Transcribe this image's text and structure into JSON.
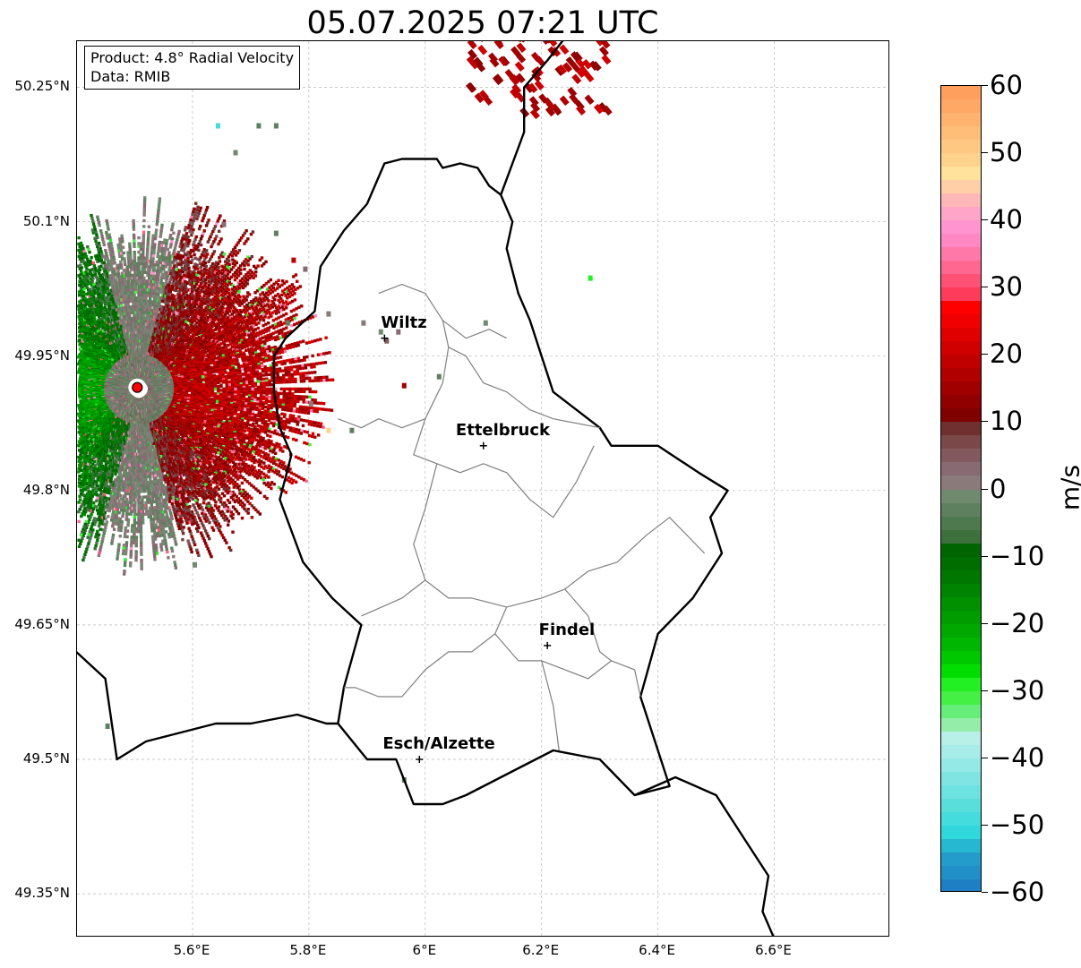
{
  "title": "05.07.2025 07:21 UTC",
  "info_box": {
    "line1": "Product: 4.8° Radial Velocity",
    "line2": "Data: RMIB"
  },
  "axes": {
    "lon_range": [
      5.4,
      6.8
    ],
    "lat_range": [
      49.3,
      50.3
    ],
    "lon_ticks": [
      {
        "value": 5.6,
        "label": "5.6°E"
      },
      {
        "value": 5.8,
        "label": "5.8°E"
      },
      {
        "value": 6.0,
        "label": "6°E"
      },
      {
        "value": 6.2,
        "label": "6.2°E"
      },
      {
        "value": 6.4,
        "label": "6.4°E"
      },
      {
        "value": 6.6,
        "label": "6.6°E"
      }
    ],
    "lat_ticks": [
      {
        "value": 50.25,
        "label": "50.25°N"
      },
      {
        "value": 50.1,
        "label": "50.1°N"
      },
      {
        "value": 49.95,
        "label": "49.95°N"
      },
      {
        "value": 49.8,
        "label": "49.8°N"
      },
      {
        "value": 49.65,
        "label": "49.65°N"
      },
      {
        "value": 49.5,
        "label": "49.5°N"
      },
      {
        "value": 49.35,
        "label": "49.35°N"
      }
    ],
    "grid": true
  },
  "cities": [
    {
      "name": "Wiltz",
      "lon": 5.93,
      "lat": 49.97
    },
    {
      "name": "Ettelbruck",
      "lon": 6.1,
      "lat": 49.85
    },
    {
      "name": "Findel",
      "lon": 6.21,
      "lat": 49.627
    },
    {
      "name": "Esch/Alzette",
      "lon": 5.99,
      "lat": 49.5
    }
  ],
  "radar_site": {
    "lon": 5.505,
    "lat": 49.915
  },
  "colorbar": {
    "unit": "m/s",
    "min": -60,
    "max": 60,
    "ticks": [
      {
        "value": 60,
        "label": "60"
      },
      {
        "value": 50,
        "label": "50"
      },
      {
        "value": 40,
        "label": "40"
      },
      {
        "value": 30,
        "label": "30"
      },
      {
        "value": 20,
        "label": "20"
      },
      {
        "value": 10,
        "label": "10"
      },
      {
        "value": 0,
        "label": "0"
      },
      {
        "value": -10,
        "label": "−10"
      },
      {
        "value": -20,
        "label": "−20"
      },
      {
        "value": -30,
        "label": "−30"
      },
      {
        "value": -40,
        "label": "−40"
      },
      {
        "value": -50,
        "label": "−50"
      },
      {
        "value": -60,
        "label": "−60"
      }
    ],
    "stops": [
      {
        "from": 58,
        "to": 60,
        "color": "#ff9f5e"
      },
      {
        "from": 56,
        "to": 58,
        "color": "#ffa866"
      },
      {
        "from": 54,
        "to": 56,
        "color": "#ffb36e"
      },
      {
        "from": 52,
        "to": 54,
        "color": "#ffbe78"
      },
      {
        "from": 50,
        "to": 52,
        "color": "#ffc882"
      },
      {
        "from": 48,
        "to": 50,
        "color": "#ffd38d"
      },
      {
        "from": 46,
        "to": 48,
        "color": "#ffe29c"
      },
      {
        "from": 44,
        "to": 46,
        "color": "#ffd0a8"
      },
      {
        "from": 42,
        "to": 44,
        "color": "#ffb8b8"
      },
      {
        "from": 40,
        "to": 42,
        "color": "#ffa6c8"
      },
      {
        "from": 38,
        "to": 40,
        "color": "#ff94d0"
      },
      {
        "from": 36,
        "to": 38,
        "color": "#ff88c4"
      },
      {
        "from": 34,
        "to": 36,
        "color": "#ff78a8"
      },
      {
        "from": 32,
        "to": 34,
        "color": "#ff6690"
      },
      {
        "from": 30,
        "to": 32,
        "color": "#ff5276"
      },
      {
        "from": 28,
        "to": 30,
        "color": "#ff3b5c"
      },
      {
        "from": 26,
        "to": 28,
        "color": "#ff0000"
      },
      {
        "from": 24,
        "to": 26,
        "color": "#f00000"
      },
      {
        "from": 22,
        "to": 24,
        "color": "#e00000"
      },
      {
        "from": 20,
        "to": 22,
        "color": "#d00000"
      },
      {
        "from": 18,
        "to": 20,
        "color": "#c00000"
      },
      {
        "from": 16,
        "to": 18,
        "color": "#b00000"
      },
      {
        "from": 14,
        "to": 16,
        "color": "#a00000"
      },
      {
        "from": 12,
        "to": 14,
        "color": "#900000"
      },
      {
        "from": 10,
        "to": 12,
        "color": "#800000"
      },
      {
        "from": 8,
        "to": 10,
        "color": "#703030"
      },
      {
        "from": 6,
        "to": 8,
        "color": "#7a4848"
      },
      {
        "from": 4,
        "to": 6,
        "color": "#825a5e"
      },
      {
        "from": 2,
        "to": 4,
        "color": "#886a72"
      },
      {
        "from": 0,
        "to": 2,
        "color": "#8a7a7a"
      },
      {
        "from": -2,
        "to": 0,
        "color": "#708a70"
      },
      {
        "from": -4,
        "to": -2,
        "color": "#5e805e"
      },
      {
        "from": -6,
        "to": -4,
        "color": "#4e784e"
      },
      {
        "from": -8,
        "to": -6,
        "color": "#3e703e"
      },
      {
        "from": -10,
        "to": -8,
        "color": "#006400"
      },
      {
        "from": -12,
        "to": -10,
        "color": "#006d00"
      },
      {
        "from": -14,
        "to": -12,
        "color": "#007800"
      },
      {
        "from": -16,
        "to": -14,
        "color": "#008400"
      },
      {
        "from": -18,
        "to": -16,
        "color": "#009000"
      },
      {
        "from": -20,
        "to": -18,
        "color": "#009c00"
      },
      {
        "from": -22,
        "to": -20,
        "color": "#00a800"
      },
      {
        "from": -24,
        "to": -22,
        "color": "#00b600"
      },
      {
        "from": -26,
        "to": -24,
        "color": "#00c800"
      },
      {
        "from": -28,
        "to": -26,
        "color": "#00de00"
      },
      {
        "from": -30,
        "to": -28,
        "color": "#22f022"
      },
      {
        "from": -32,
        "to": -30,
        "color": "#44f044"
      },
      {
        "from": -34,
        "to": -32,
        "color": "#66ee7a"
      },
      {
        "from": -36,
        "to": -34,
        "color": "#94eeaa"
      },
      {
        "from": -38,
        "to": -36,
        "color": "#b8f0e8"
      },
      {
        "from": -40,
        "to": -38,
        "color": "#a8ecea"
      },
      {
        "from": -42,
        "to": -40,
        "color": "#94e8e6"
      },
      {
        "from": -44,
        "to": -42,
        "color": "#80e4e2"
      },
      {
        "from": -46,
        "to": -44,
        "color": "#6ee2e0"
      },
      {
        "from": -48,
        "to": -46,
        "color": "#5adedc"
      },
      {
        "from": -50,
        "to": -48,
        "color": "#44dcdc"
      },
      {
        "from": -52,
        "to": -50,
        "color": "#30d8dc"
      },
      {
        "from": -54,
        "to": -52,
        "color": "#26b8d0"
      },
      {
        "from": -56,
        "to": -54,
        "color": "#239ccc"
      },
      {
        "from": -58,
        "to": -56,
        "color": "#2290c8"
      },
      {
        "from": -60,
        "to": -58,
        "color": "#1f7fc4"
      }
    ]
  },
  "colors": {
    "grid": "#b8b8b8",
    "national_border": "#000000",
    "canton_border": "#808080",
    "radar_site_fill": "#ff0000"
  }
}
